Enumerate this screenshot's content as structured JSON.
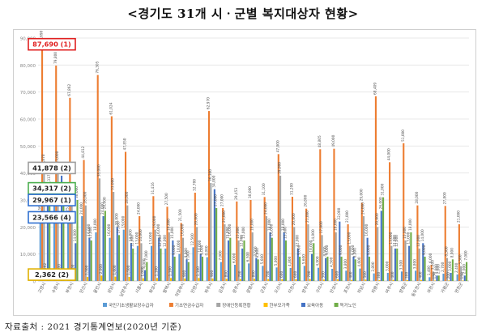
{
  "title": "<경기도 31개 시ㆍ군별 복지대상자 현황>",
  "source": "자료출처 : 2021 경기통계연보(2020년 기준)",
  "colors": {
    "series": [
      "#5b9bd5",
      "#ed7d31",
      "#a5a5a5",
      "#ffc000",
      "#4472c4",
      "#70ad47"
    ],
    "callout_red": "#e02020",
    "callout_green": "#4caf50",
    "callout_blue": "#2f6fd0",
    "callout_grey": "#9e9e9e",
    "callout_orange": "#ef8c2b",
    "callout_yellow": "#e0b000"
  },
  "callouts": [
    {
      "text": "87,690 (1)",
      "color": "callout_red",
      "series": 1,
      "index": 0
    },
    {
      "text": "41,878 (2)",
      "color": "callout_grey",
      "series": 2,
      "index": 0
    },
    {
      "text": "34,317 (2)",
      "color": "callout_green",
      "series": 5,
      "index": 0
    },
    {
      "text": "29,967 (1)",
      "color": "callout_blue",
      "series": 4,
      "index": 0
    },
    {
      "text": "23,566 (4)",
      "color": "callout_blue",
      "series": 0,
      "index": 0
    },
    {
      "text": "2,362 (2)",
      "color": "callout_yellow",
      "series": 3,
      "index": 0
    }
  ],
  "chart_data": {
    "type": "bar",
    "title": "",
    "ylim": [
      0,
      90000
    ],
    "yticks": [
      0,
      10000,
      20000,
      30000,
      40000,
      50000,
      60000,
      70000,
      80000,
      90000
    ],
    "grid": true,
    "legend_position": "bottom",
    "categories": [
      "고양시",
      "수원시",
      "부천시",
      "안산시",
      "용인시",
      "성남시",
      "남양주시",
      "시흥시",
      "화성시",
      "평택시",
      "의정부시",
      "안양시",
      "파주시",
      "김포시",
      "광주시",
      "광명시",
      "군포시",
      "오산시",
      "이천시",
      "양주시",
      "구리시",
      "안성시",
      "포천시",
      "하남시",
      "의왕시",
      "여주시",
      "양평군",
      "동두천시",
      "과천시",
      "가평군",
      "연천군"
    ],
    "series": [
      {
        "name": "국민기초생활보장수급자",
        "values": [
          23566,
          30100,
          25000,
          24000,
          18000,
          16000,
          19000,
          13000,
          13000,
          12000,
          10000,
          12500,
          8800,
          7000,
          6000,
          6500,
          5600,
          5000,
          4800,
          5600,
          4900,
          4500,
          3800,
          4600,
          2800,
          3000,
          3500,
          3800,
          1400,
          2700,
          2400
        ]
      },
      {
        "name": "기초연금수급자",
        "values": [
          87690,
          79800,
          67862,
          44812,
          76305,
          61024,
          47850,
          24000,
          31416,
          27500,
          21500,
          32700,
          62970,
          27000,
          29453,
          30000,
          31100,
          47000,
          31200,
          26800,
          48805,
          49000,
          21000,
          29000,
          68409,
          44000,
          51000,
          28000,
          6000,
          27800,
          21000
        ]
      },
      {
        "name": "장애인등록현황",
        "values": [
          41878,
          43000,
          30000,
          28000,
          38000,
          33000,
          28000,
          14000,
          19000,
          18000,
          16000,
          20000,
          36300,
          21000,
          15000,
          18000,
          24000,
          39000,
          20000,
          21000,
          17000,
          18000,
          13000,
          24000,
          20000,
          13000,
          15000,
          12000,
          3500,
          8500,
          5500
        ]
      },
      {
        "name": "한부모가족",
        "values": [
          2362,
          2000,
          1800,
          1500,
          2000,
          1600,
          1500,
          1000,
          1100,
          1100,
          900,
          1100,
          900,
          800,
          700,
          800,
          700,
          600,
          600,
          700,
          500,
          600,
          400,
          500,
          300,
          400,
          300,
          400,
          150,
          200,
          150
        ]
      },
      {
        "name": "보육아동",
        "values": [
          29967,
          39000,
          14000,
          16000,
          24000,
          20000,
          14000,
          4000,
          16000,
          15000,
          8000,
          10000,
          34000,
          15000,
          12000,
          8500,
          18000,
          18000,
          12000,
          10000,
          8500,
          22000,
          9000,
          16000,
          26000,
          12000,
          13000,
          14000,
          2000,
          3000,
          2000
        ]
      },
      {
        "name": "독거노인",
        "values": [
          34317,
          31470,
          30000,
          15000,
          26000,
          17000,
          12000,
          7000,
          12000,
          9000,
          7000,
          9000,
          27000,
          16000,
          15000,
          8000,
          16000,
          15000,
          9000,
          14000,
          9000,
          9000,
          8000,
          9000,
          31000,
          12000,
          18000,
          9000,
          2000,
          8000,
          7000
        ]
      }
    ]
  }
}
